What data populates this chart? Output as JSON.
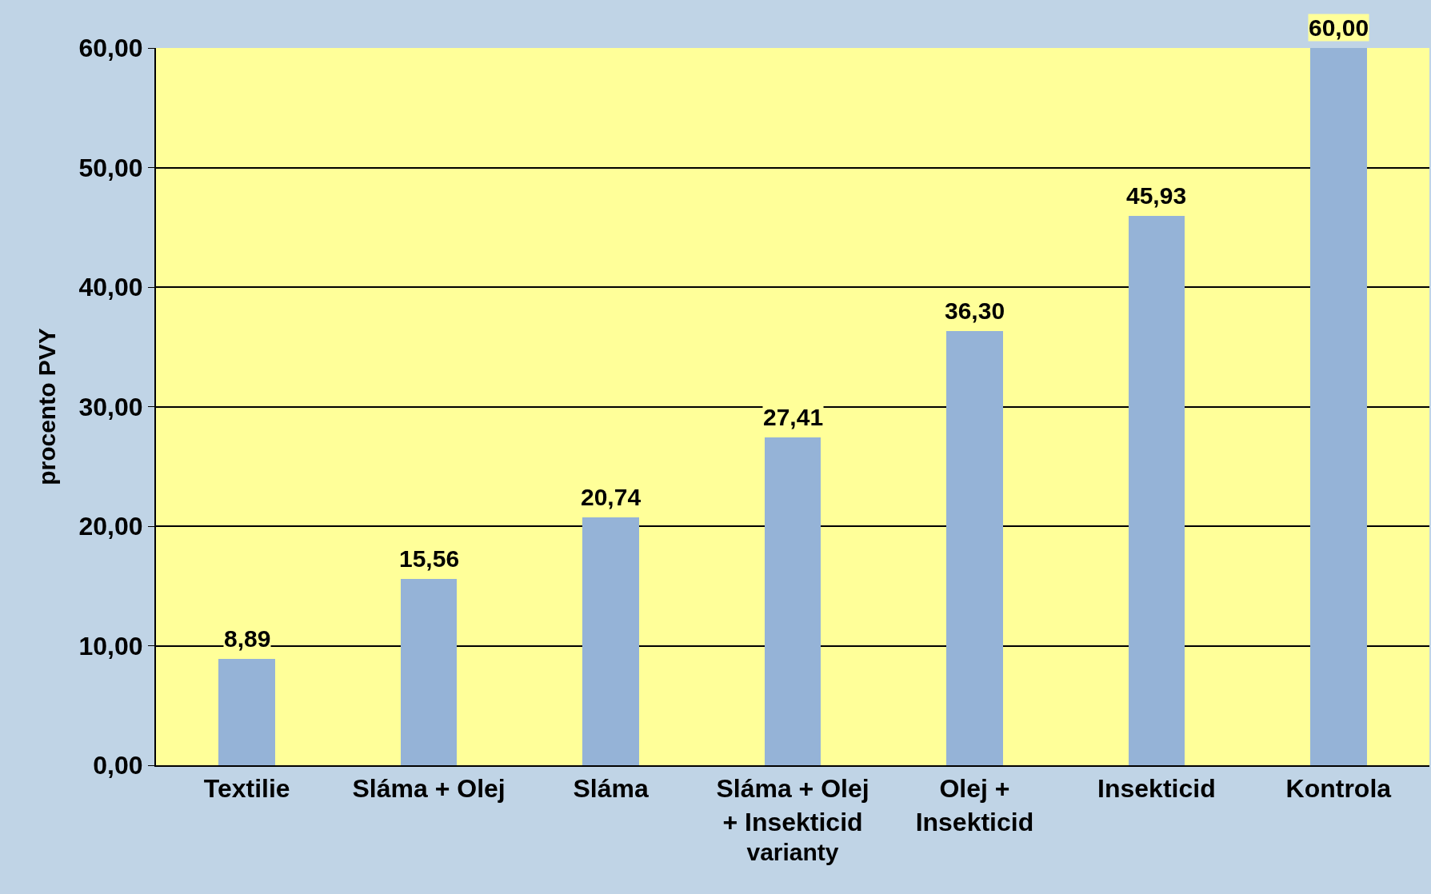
{
  "chart_data": {
    "type": "bar",
    "xlabel": "varianty",
    "ylabel": "procento PVY",
    "categories": [
      "Textilie",
      "Sláma + Olej",
      "Sláma",
      "Sláma + Olej\n+ Insekticid",
      "Olej +\nInsekticid",
      "Insekticid",
      "Kontrola"
    ],
    "values": [
      8.89,
      15.56,
      20.74,
      27.41,
      36.3,
      45.93,
      60.0
    ],
    "value_labels": [
      "8,89",
      "15,56",
      "20,74",
      "27,41",
      "36,30",
      "45,93",
      "60,00"
    ],
    "color": "#95b3d7",
    "ylim": [
      0,
      60
    ],
    "yticks": [
      {
        "value": 0,
        "label": "0,00"
      },
      {
        "value": 10,
        "label": "10,00"
      },
      {
        "value": 20,
        "label": "20,00"
      },
      {
        "value": 30,
        "label": "30,00"
      },
      {
        "value": 40,
        "label": "40,00"
      },
      {
        "value": 50,
        "label": "50,00"
      },
      {
        "value": 60,
        "label": "60,00"
      }
    ],
    "grid": "y",
    "legend": false
  }
}
